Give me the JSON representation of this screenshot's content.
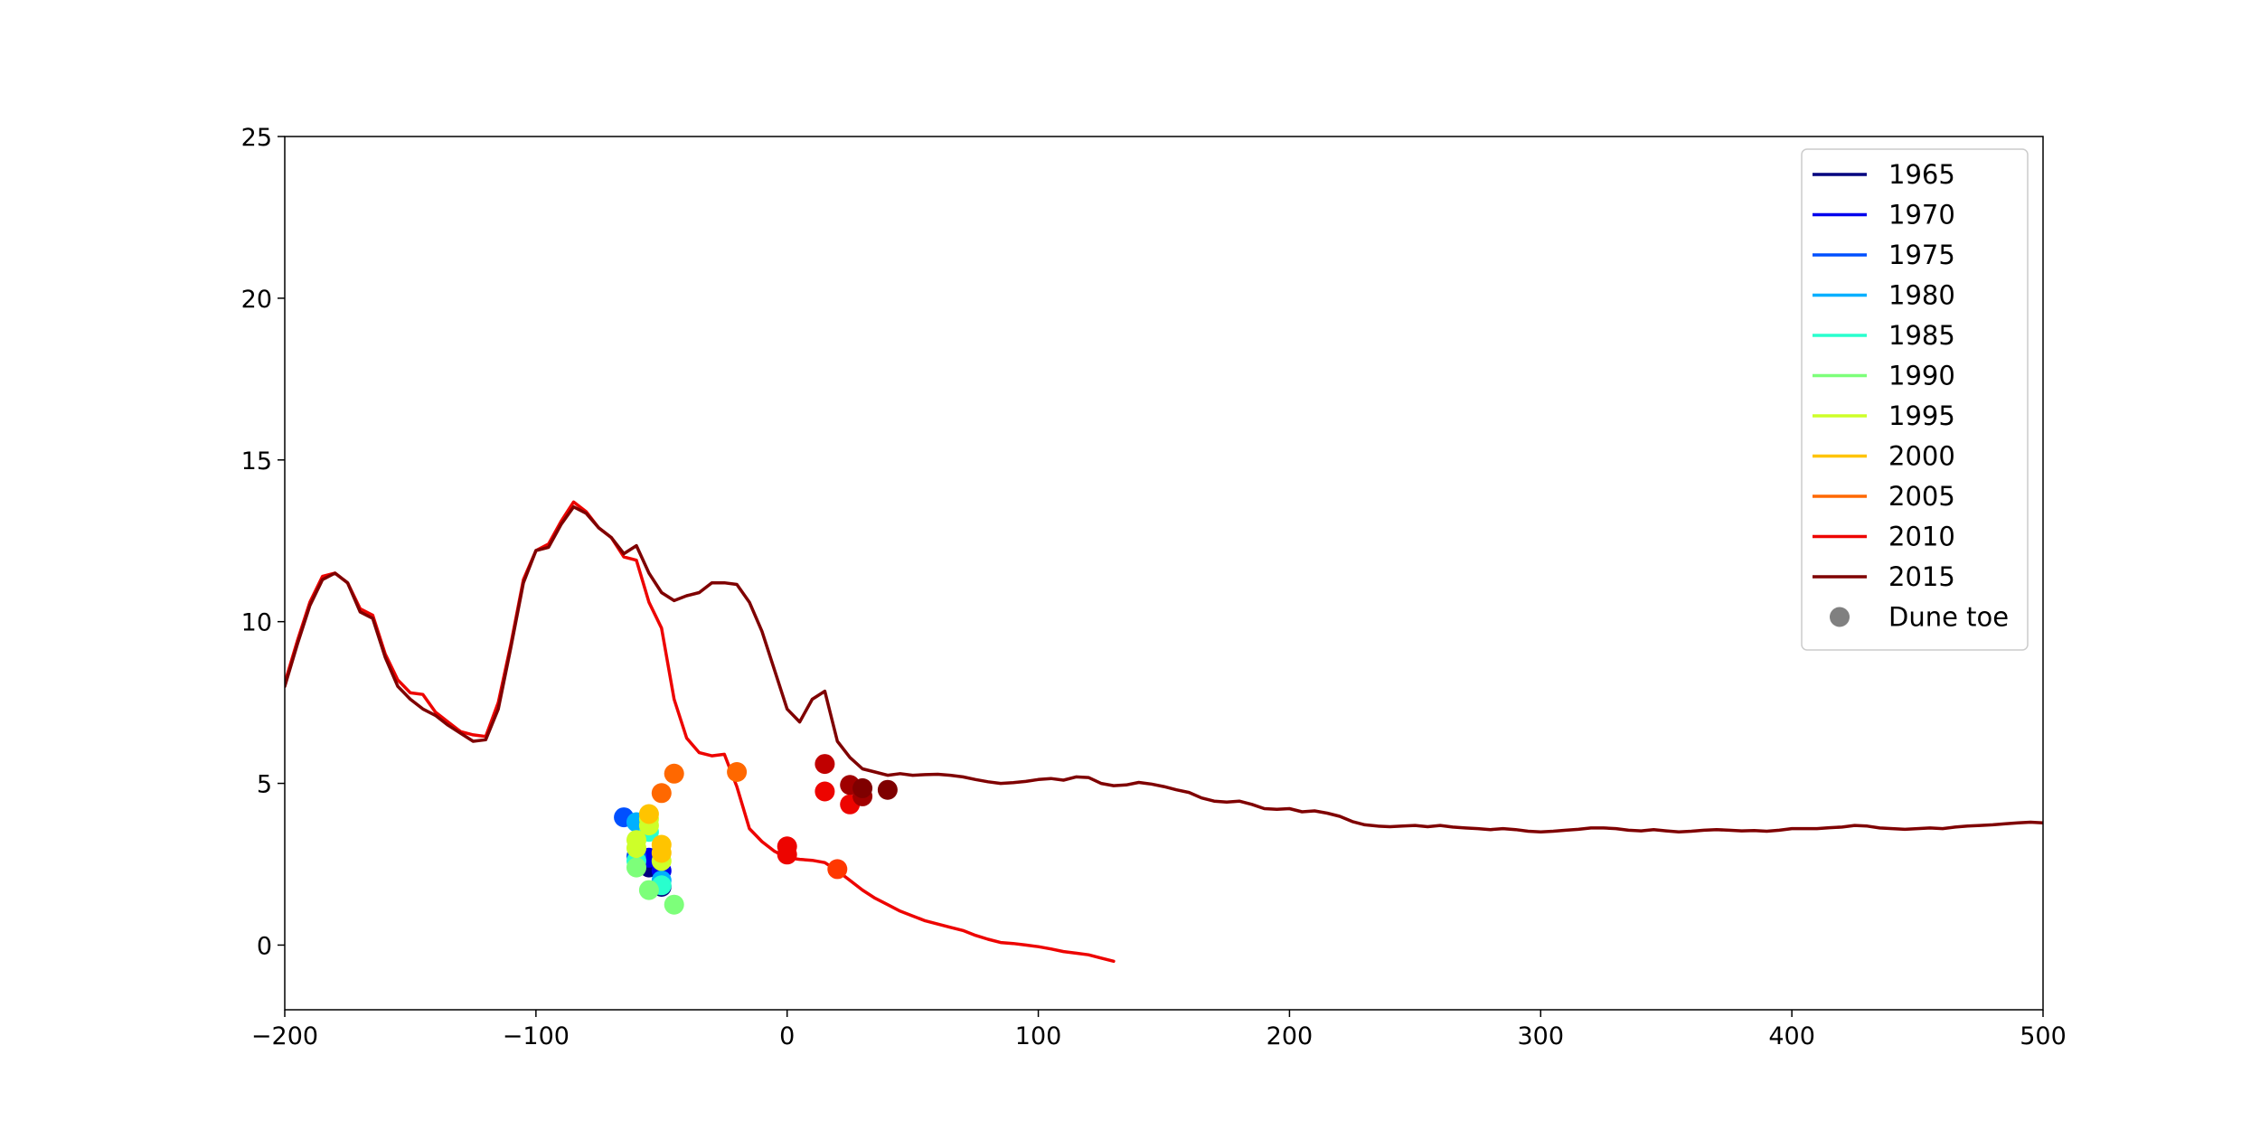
{
  "chart_data": {
    "type": "line",
    "title": "",
    "xlabel": "",
    "ylabel": "",
    "xlim": [
      -200,
      500
    ],
    "ylim": [
      -2,
      25
    ],
    "xticks": [
      -200,
      -100,
      0,
      100,
      200,
      300,
      400,
      500
    ],
    "yticks": [
      0,
      5,
      10,
      15,
      20,
      25
    ],
    "grid": false,
    "legend_position": "top-right",
    "legend": [
      {
        "label": "1965",
        "color": "#00007f",
        "marker": "line"
      },
      {
        "label": "1970",
        "color": "#0000ed",
        "marker": "line"
      },
      {
        "label": "1975",
        "color": "#0050ff",
        "marker": "line"
      },
      {
        "label": "1980",
        "color": "#00b0ff",
        "marker": "line"
      },
      {
        "label": "1985",
        "color": "#29ffce",
        "marker": "line"
      },
      {
        "label": "1990",
        "color": "#7dff7a",
        "marker": "line"
      },
      {
        "label": "1995",
        "color": "#ceff29",
        "marker": "line"
      },
      {
        "label": "2000",
        "color": "#ffc400",
        "marker": "line"
      },
      {
        "label": "2005",
        "color": "#ff6800",
        "marker": "line"
      },
      {
        "label": "2010",
        "color": "#ed0400",
        "marker": "line"
      },
      {
        "label": "2015",
        "color": "#7f0000",
        "marker": "line"
      },
      {
        "label": "Dune toe",
        "color": "#808080",
        "marker": "dot"
      }
    ],
    "series": [
      {
        "name": "2010",
        "color": "#ed0400",
        "points": [
          [
            -200,
            8.1
          ],
          [
            -195,
            9.4
          ],
          [
            -190,
            10.6
          ],
          [
            -185,
            11.4
          ],
          [
            -180,
            11.5
          ],
          [
            -175,
            11.2
          ],
          [
            -170,
            10.4
          ],
          [
            -165,
            10.2
          ],
          [
            -160,
            9.0
          ],
          [
            -155,
            8.2
          ],
          [
            -150,
            7.8
          ],
          [
            -145,
            7.75
          ],
          [
            -140,
            7.2
          ],
          [
            -135,
            6.9
          ],
          [
            -130,
            6.6
          ],
          [
            -125,
            6.5
          ],
          [
            -120,
            6.45
          ],
          [
            -115,
            7.5
          ],
          [
            -110,
            9.3
          ],
          [
            -105,
            11.3
          ],
          [
            -100,
            12.2
          ],
          [
            -95,
            12.4
          ],
          [
            -90,
            13.1
          ],
          [
            -85,
            13.7
          ],
          [
            -80,
            13.4
          ],
          [
            -75,
            12.9
          ],
          [
            -70,
            12.6
          ],
          [
            -65,
            12.0
          ],
          [
            -60,
            11.9
          ],
          [
            -55,
            10.6
          ],
          [
            -50,
            9.8
          ],
          [
            -45,
            7.6
          ],
          [
            -40,
            6.4
          ],
          [
            -35,
            5.95
          ],
          [
            -30,
            5.85
          ],
          [
            -25,
            5.9
          ],
          [
            -20,
            4.9
          ],
          [
            -15,
            3.6
          ],
          [
            -10,
            3.2
          ],
          [
            -5,
            2.9
          ],
          [
            0,
            2.7
          ],
          [
            5,
            2.65
          ],
          [
            10,
            2.62
          ],
          [
            15,
            2.55
          ],
          [
            20,
            2.3
          ],
          [
            25,
            2.0
          ],
          [
            30,
            1.7
          ],
          [
            35,
            1.45
          ],
          [
            40,
            1.25
          ],
          [
            45,
            1.05
          ],
          [
            50,
            0.9
          ],
          [
            55,
            0.75
          ],
          [
            60,
            0.65
          ],
          [
            65,
            0.55
          ],
          [
            70,
            0.45
          ],
          [
            75,
            0.3
          ],
          [
            80,
            0.18
          ],
          [
            85,
            0.08
          ],
          [
            90,
            0.05
          ],
          [
            95,
            0.0
          ],
          [
            100,
            -0.05
          ],
          [
            105,
            -0.12
          ],
          [
            110,
            -0.2
          ],
          [
            115,
            -0.25
          ],
          [
            120,
            -0.3
          ],
          [
            125,
            -0.4
          ],
          [
            130,
            -0.5
          ]
        ]
      },
      {
        "name": "2015",
        "color": "#7f0000",
        "points": [
          [
            -200,
            8.0
          ],
          [
            -195,
            9.3
          ],
          [
            -190,
            10.5
          ],
          [
            -185,
            11.3
          ],
          [
            -180,
            11.5
          ],
          [
            -175,
            11.2
          ],
          [
            -170,
            10.3
          ],
          [
            -165,
            10.1
          ],
          [
            -160,
            8.9
          ],
          [
            -155,
            8.0
          ],
          [
            -150,
            7.6
          ],
          [
            -145,
            7.3
          ],
          [
            -140,
            7.1
          ],
          [
            -135,
            6.8
          ],
          [
            -130,
            6.55
          ],
          [
            -125,
            6.3
          ],
          [
            -120,
            6.35
          ],
          [
            -115,
            7.3
          ],
          [
            -110,
            9.2
          ],
          [
            -105,
            11.2
          ],
          [
            -100,
            12.2
          ],
          [
            -95,
            12.3
          ],
          [
            -90,
            13.0
          ],
          [
            -85,
            13.55
          ],
          [
            -80,
            13.35
          ],
          [
            -75,
            12.9
          ],
          [
            -70,
            12.6
          ],
          [
            -65,
            12.1
          ],
          [
            -60,
            12.35
          ],
          [
            -55,
            11.5
          ],
          [
            -50,
            10.9
          ],
          [
            -45,
            10.65
          ],
          [
            -40,
            10.8
          ],
          [
            -35,
            10.9
          ],
          [
            -30,
            11.2
          ],
          [
            -25,
            11.2
          ],
          [
            -20,
            11.15
          ],
          [
            -15,
            10.6
          ],
          [
            -10,
            9.7
          ],
          [
            -5,
            8.5
          ],
          [
            0,
            7.3
          ],
          [
            5,
            6.9
          ],
          [
            10,
            7.6
          ],
          [
            15,
            7.85
          ],
          [
            20,
            6.3
          ],
          [
            25,
            5.8
          ],
          [
            30,
            5.45
          ],
          [
            35,
            5.35
          ],
          [
            40,
            5.25
          ],
          [
            45,
            5.3
          ],
          [
            50,
            5.25
          ],
          [
            55,
            5.27
          ],
          [
            60,
            5.28
          ],
          [
            65,
            5.25
          ],
          [
            70,
            5.2
          ],
          [
            75,
            5.12
          ],
          [
            80,
            5.05
          ],
          [
            85,
            5.0
          ],
          [
            90,
            5.02
          ],
          [
            95,
            5.06
          ],
          [
            100,
            5.12
          ],
          [
            105,
            5.15
          ],
          [
            110,
            5.1
          ],
          [
            115,
            5.2
          ],
          [
            120,
            5.18
          ],
          [
            125,
            5.0
          ],
          [
            130,
            4.93
          ],
          [
            135,
            4.95
          ],
          [
            140,
            5.03
          ],
          [
            145,
            4.98
          ],
          [
            150,
            4.9
          ],
          [
            155,
            4.8
          ],
          [
            160,
            4.72
          ],
          [
            165,
            4.55
          ],
          [
            170,
            4.45
          ],
          [
            175,
            4.42
          ],
          [
            180,
            4.45
          ],
          [
            185,
            4.35
          ],
          [
            190,
            4.22
          ],
          [
            195,
            4.2
          ],
          [
            200,
            4.22
          ],
          [
            205,
            4.12
          ],
          [
            210,
            4.15
          ],
          [
            215,
            4.08
          ],
          [
            220,
            3.98
          ],
          [
            225,
            3.82
          ],
          [
            230,
            3.72
          ],
          [
            235,
            3.68
          ],
          [
            240,
            3.66
          ],
          [
            245,
            3.68
          ],
          [
            250,
            3.7
          ],
          [
            255,
            3.66
          ],
          [
            260,
            3.7
          ],
          [
            265,
            3.65
          ],
          [
            270,
            3.62
          ],
          [
            275,
            3.6
          ],
          [
            280,
            3.57
          ],
          [
            285,
            3.6
          ],
          [
            290,
            3.57
          ],
          [
            295,
            3.52
          ],
          [
            300,
            3.5
          ],
          [
            305,
            3.52
          ],
          [
            310,
            3.55
          ],
          [
            315,
            3.58
          ],
          [
            320,
            3.62
          ],
          [
            325,
            3.62
          ],
          [
            330,
            3.6
          ],
          [
            335,
            3.55
          ],
          [
            340,
            3.53
          ],
          [
            345,
            3.57
          ],
          [
            350,
            3.53
          ],
          [
            355,
            3.5
          ],
          [
            360,
            3.52
          ],
          [
            365,
            3.55
          ],
          [
            370,
            3.57
          ],
          [
            375,
            3.55
          ],
          [
            380,
            3.53
          ],
          [
            385,
            3.54
          ],
          [
            390,
            3.52
          ],
          [
            395,
            3.55
          ],
          [
            400,
            3.6
          ],
          [
            405,
            3.6
          ],
          [
            410,
            3.6
          ],
          [
            415,
            3.63
          ],
          [
            420,
            3.65
          ],
          [
            425,
            3.7
          ],
          [
            430,
            3.68
          ],
          [
            435,
            3.62
          ],
          [
            440,
            3.6
          ],
          [
            445,
            3.58
          ],
          [
            450,
            3.6
          ],
          [
            455,
            3.62
          ],
          [
            460,
            3.6
          ],
          [
            465,
            3.65
          ],
          [
            470,
            3.68
          ],
          [
            475,
            3.7
          ],
          [
            480,
            3.72
          ],
          [
            485,
            3.75
          ],
          [
            490,
            3.78
          ],
          [
            495,
            3.8
          ],
          [
            500,
            3.78
          ]
        ]
      }
    ],
    "dune_toe_points": [
      {
        "x": -55,
        "y": 2.4,
        "color": "#00007f"
      },
      {
        "x": -50,
        "y": 1.8,
        "color": "#00007f"
      },
      {
        "x": -50,
        "y": 2.3,
        "color": "#0000ed"
      },
      {
        "x": -55,
        "y": 2.7,
        "color": "#0000ed"
      },
      {
        "x": -65,
        "y": 3.95,
        "color": "#0050ff"
      },
      {
        "x": -60,
        "y": 2.75,
        "color": "#0050ff"
      },
      {
        "x": -60,
        "y": 3.8,
        "color": "#00b0ff"
      },
      {
        "x": -50,
        "y": 2.0,
        "color": "#00b0ff"
      },
      {
        "x": -55,
        "y": 3.5,
        "color": "#29ffce"
      },
      {
        "x": -60,
        "y": 2.6,
        "color": "#29ffce"
      },
      {
        "x": -50,
        "y": 1.85,
        "color": "#29ffce"
      },
      {
        "x": -60,
        "y": 2.4,
        "color": "#7dff7a"
      },
      {
        "x": -55,
        "y": 1.7,
        "color": "#7dff7a"
      },
      {
        "x": -45,
        "y": 1.25,
        "color": "#7dff7a"
      },
      {
        "x": -60,
        "y": 3.0,
        "color": "#ceff29"
      },
      {
        "x": -55,
        "y": 3.7,
        "color": "#ceff29"
      },
      {
        "x": -60,
        "y": 3.25,
        "color": "#ceff29"
      },
      {
        "x": -55,
        "y": 3.9,
        "color": "#ceff29"
      },
      {
        "x": -50,
        "y": 2.6,
        "color": "#ceff29"
      },
      {
        "x": -50,
        "y": 3.1,
        "color": "#ffc400"
      },
      {
        "x": -50,
        "y": 2.85,
        "color": "#ffc400"
      },
      {
        "x": -55,
        "y": 4.05,
        "color": "#ffc400"
      },
      {
        "x": -50,
        "y": 4.7,
        "color": "#ff6800"
      },
      {
        "x": -45,
        "y": 5.3,
        "color": "#ff6800"
      },
      {
        "x": -20,
        "y": 5.35,
        "color": "#ff6800"
      },
      {
        "x": 20,
        "y": 2.35,
        "color": "#ff3800"
      },
      {
        "x": 0,
        "y": 3.05,
        "color": "#ed0400"
      },
      {
        "x": 0,
        "y": 2.8,
        "color": "#ed0400"
      },
      {
        "x": 15,
        "y": 4.75,
        "color": "#ed0400"
      },
      {
        "x": 25,
        "y": 4.35,
        "color": "#ed0400"
      },
      {
        "x": 15,
        "y": 5.6,
        "color": "#c00000"
      },
      {
        "x": 25,
        "y": 4.95,
        "color": "#a00000"
      },
      {
        "x": 30,
        "y": 4.6,
        "color": "#a00000"
      },
      {
        "x": 30,
        "y": 4.85,
        "color": "#7f0000"
      },
      {
        "x": 40,
        "y": 4.8,
        "color": "#7f0000"
      }
    ]
  }
}
